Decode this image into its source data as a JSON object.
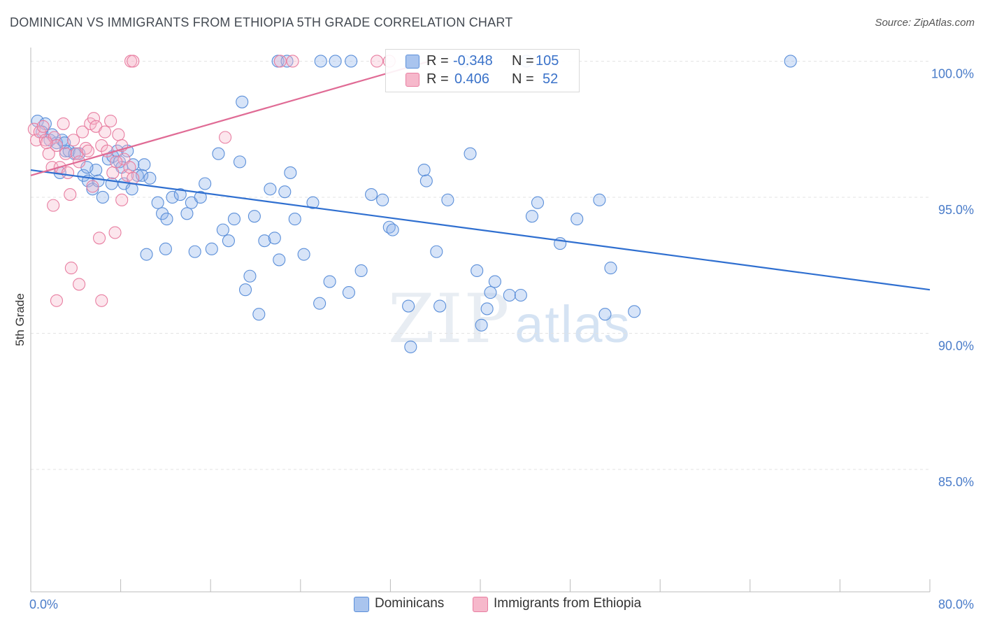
{
  "title": "DOMINICAN VS IMMIGRANTS FROM ETHIOPIA 5TH GRADE CORRELATION CHART",
  "source": "Source: ZipAtlas.com",
  "watermark": {
    "zip": "ZIP",
    "atlas": "atlas"
  },
  "legend": {
    "rows": [
      {
        "r_label": "R =",
        "r_value": "-0.348",
        "n_label": "N =",
        "n_value": "105",
        "color": "#a9c4ee"
      },
      {
        "r_label": "R =",
        "r_value": "0.406",
        "n_label": "N =",
        "n_value": "52",
        "color": "#f6b8cb"
      }
    ]
  },
  "bottom_legend": [
    {
      "label": "Dominicans",
      "color": "#a9c4ee"
    },
    {
      "label": "Immigrants from Ethiopia",
      "color": "#f6b8cb"
    }
  ],
  "chart_data": {
    "type": "scatter",
    "ylabel": "5th Grade",
    "xlim": [
      0,
      80
    ],
    "ylim": [
      80.5,
      100.5
    ],
    "y_ticks": [
      {
        "value": 100,
        "label": "100.0%"
      },
      {
        "value": 95,
        "label": "95.0%"
      },
      {
        "value": 90,
        "label": "90.0%"
      },
      {
        "value": 85,
        "label": "85.0%"
      }
    ],
    "x_tick_labels": [
      {
        "value": 0,
        "label": "0.0%"
      },
      {
        "value": 80,
        "label": "80.0%"
      }
    ],
    "x_minor_ticks": [
      8,
      16,
      24,
      32,
      40,
      48,
      56,
      64,
      72,
      80
    ],
    "grid": "horizontal-dashed",
    "series": [
      {
        "name": "Dominicans",
        "stroke": "#5b8fd9",
        "fill": "rgba(140,178,236,0.35)",
        "trend": {
          "x": [
            0,
            80
          ],
          "y": [
            96.0,
            91.6
          ],
          "color": "#2f6fd0"
        },
        "points": [
          [
            0.6,
            97.8
          ],
          [
            1.3,
            97.7
          ],
          [
            1.0,
            97.4
          ],
          [
            1.7,
            97.1
          ],
          [
            2.3,
            97.0
          ],
          [
            2.8,
            97.1
          ],
          [
            3.1,
            96.7
          ],
          [
            3.4,
            96.7
          ],
          [
            3.9,
            96.6
          ],
          [
            4.3,
            96.6
          ],
          [
            2.6,
            95.9
          ],
          [
            4.7,
            95.8
          ],
          [
            5.1,
            95.6
          ],
          [
            5.5,
            95.3
          ],
          [
            5.8,
            96.0
          ],
          [
            6.0,
            95.6
          ],
          [
            6.4,
            95.0
          ],
          [
            6.9,
            96.4
          ],
          [
            7.3,
            96.5
          ],
          [
            7.7,
            96.7
          ],
          [
            7.9,
            96.3
          ],
          [
            8.1,
            96.1
          ],
          [
            8.3,
            95.5
          ],
          [
            8.6,
            96.7
          ],
          [
            9.1,
            96.2
          ],
          [
            9.5,
            95.8
          ],
          [
            9.9,
            95.8
          ],
          [
            10.1,
            96.2
          ],
          [
            10.6,
            95.7
          ],
          [
            11.3,
            94.8
          ],
          [
            11.7,
            94.4
          ],
          [
            12.1,
            94.2
          ],
          [
            12.6,
            95.0
          ],
          [
            13.3,
            95.1
          ],
          [
            13.9,
            94.4
          ],
          [
            14.3,
            94.8
          ],
          [
            15.1,
            95.0
          ],
          [
            15.5,
            95.5
          ],
          [
            16.1,
            93.1
          ],
          [
            16.7,
            96.6
          ],
          [
            17.1,
            93.8
          ],
          [
            17.6,
            93.4
          ],
          [
            18.1,
            94.2
          ],
          [
            18.6,
            96.3
          ],
          [
            19.1,
            91.6
          ],
          [
            19.5,
            92.1
          ],
          [
            19.9,
            94.3
          ],
          [
            20.3,
            90.7
          ],
          [
            20.8,
            93.4
          ],
          [
            21.3,
            95.3
          ],
          [
            21.7,
            93.5
          ],
          [
            22.1,
            92.7
          ],
          [
            22.6,
            95.2
          ],
          [
            23.1,
            95.9
          ],
          [
            23.5,
            94.2
          ],
          [
            24.3,
            92.9
          ],
          [
            25.1,
            94.8
          ],
          [
            25.7,
            91.1
          ],
          [
            26.6,
            91.9
          ],
          [
            27.1,
            100.0
          ],
          [
            28.3,
            91.5
          ],
          [
            29.4,
            92.3
          ],
          [
            30.3,
            95.1
          ],
          [
            31.3,
            94.9
          ],
          [
            31.9,
            93.9
          ],
          [
            32.2,
            93.8
          ],
          [
            33.6,
            91.0
          ],
          [
            33.8,
            89.5
          ],
          [
            35.0,
            96.0
          ],
          [
            35.2,
            95.6
          ],
          [
            36.1,
            93.0
          ],
          [
            36.4,
            91.0
          ],
          [
            37.1,
            94.9
          ],
          [
            38.6,
            100.0
          ],
          [
            39.1,
            96.6
          ],
          [
            39.7,
            92.3
          ],
          [
            40.1,
            90.3
          ],
          [
            40.6,
            90.9
          ],
          [
            40.9,
            91.5
          ],
          [
            41.3,
            91.9
          ],
          [
            42.6,
            91.4
          ],
          [
            43.6,
            91.4
          ],
          [
            44.1,
            100.0
          ],
          [
            44.6,
            94.3
          ],
          [
            45.1,
            94.8
          ],
          [
            47.1,
            93.3
          ],
          [
            48.6,
            94.2
          ],
          [
            50.6,
            94.9
          ],
          [
            51.1,
            90.7
          ],
          [
            51.6,
            92.4
          ],
          [
            53.7,
            90.8
          ],
          [
            67.6,
            100.0
          ],
          [
            25.8,
            100.0
          ],
          [
            28.5,
            100.0
          ],
          [
            22.0,
            100.0
          ],
          [
            22.8,
            100.0
          ],
          [
            18.8,
            98.5
          ],
          [
            3.0,
            97.0
          ],
          [
            5.0,
            96.1
          ],
          [
            9.0,
            95.3
          ],
          [
            12.0,
            93.1
          ],
          [
            14.6,
            93.0
          ],
          [
            10.3,
            92.9
          ],
          [
            7.2,
            95.5
          ],
          [
            1.9,
            97.3
          ]
        ]
      },
      {
        "name": "Immigrants from Ethiopia",
        "stroke": "#e87ea1",
        "fill": "rgba(246,184,203,0.35)",
        "trend": {
          "x": [
            0,
            35.5
          ],
          "y": [
            95.8,
            100.0
          ],
          "color": "#e06b95"
        },
        "points": [
          [
            0.3,
            97.5
          ],
          [
            0.5,
            97.1
          ],
          [
            0.8,
            97.4
          ],
          [
            1.1,
            97.6
          ],
          [
            1.3,
            97.1
          ],
          [
            1.6,
            96.6
          ],
          [
            1.9,
            96.1
          ],
          [
            2.1,
            97.2
          ],
          [
            2.3,
            96.9
          ],
          [
            2.6,
            96.1
          ],
          [
            2.9,
            97.7
          ],
          [
            3.1,
            96.6
          ],
          [
            3.3,
            95.9
          ],
          [
            3.5,
            95.1
          ],
          [
            3.8,
            97.1
          ],
          [
            4.1,
            96.6
          ],
          [
            4.3,
            96.3
          ],
          [
            4.6,
            97.4
          ],
          [
            4.9,
            96.8
          ],
          [
            5.1,
            96.7
          ],
          [
            5.3,
            97.7
          ],
          [
            5.5,
            95.4
          ],
          [
            5.6,
            97.9
          ],
          [
            5.8,
            97.6
          ],
          [
            6.1,
            93.5
          ],
          [
            6.3,
            96.9
          ],
          [
            6.6,
            97.4
          ],
          [
            6.8,
            96.7
          ],
          [
            7.1,
            97.8
          ],
          [
            7.3,
            95.9
          ],
          [
            7.5,
            93.7
          ],
          [
            7.8,
            97.3
          ],
          [
            8.1,
            96.9
          ],
          [
            8.3,
            96.4
          ],
          [
            8.6,
            95.8
          ],
          [
            8.8,
            96.1
          ],
          [
            9.1,
            95.7
          ],
          [
            2.0,
            94.7
          ],
          [
            3.6,
            92.4
          ],
          [
            4.3,
            91.8
          ],
          [
            2.3,
            91.2
          ],
          [
            6.3,
            91.2
          ],
          [
            8.9,
            100.0
          ],
          [
            9.1,
            100.0
          ],
          [
            22.2,
            100.0
          ],
          [
            23.3,
            100.0
          ],
          [
            30.8,
            100.0
          ],
          [
            31.9,
            100.0
          ],
          [
            17.3,
            97.2
          ],
          [
            8.1,
            94.9
          ],
          [
            7.6,
            96.3
          ],
          [
            1.4,
            97.0
          ]
        ]
      }
    ]
  }
}
